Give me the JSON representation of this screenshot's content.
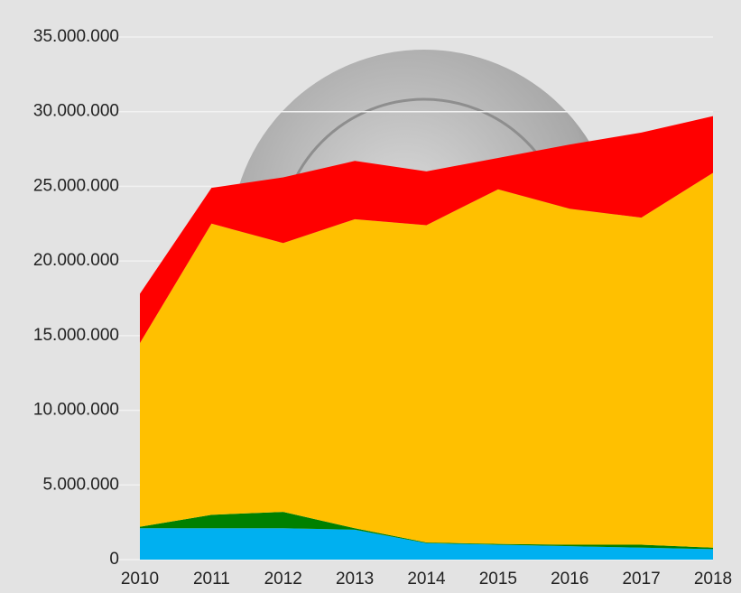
{
  "chart_data": {
    "type": "stacked-area",
    "categories": [
      "2010",
      "2011",
      "2012",
      "2013",
      "2014",
      "2015",
      "2016",
      "2017",
      "2018"
    ],
    "series": [
      {
        "color": "#00b0f0",
        "values": [
          2100000,
          2100000,
          2100000,
          2000000,
          1100000,
          1000000,
          900000,
          800000,
          700000
        ]
      },
      {
        "color": "#008000",
        "values": [
          100000,
          900000,
          1100000,
          100000,
          50000,
          50000,
          100000,
          200000,
          100000
        ]
      },
      {
        "color": "#ffc000",
        "values": [
          12300000,
          19500000,
          18000000,
          20700000,
          21250000,
          23750000,
          22500000,
          21900000,
          25100000
        ]
      },
      {
        "color": "#ff0000",
        "values": [
          3300000,
          2400000,
          4400000,
          3900000,
          3600000,
          2100000,
          4300000,
          5700000,
          3800000
        ]
      }
    ],
    "ylim": [
      0,
      35000000
    ],
    "yticks": [
      0,
      {
        "value": 5000000,
        "label": "5.000.000"
      },
      {
        "value": 10000000,
        "label": "10.000.000"
      },
      {
        "value": 15000000,
        "label": "15.000.000"
      },
      {
        "value": 20000000,
        "label": "20.000.000"
      },
      {
        "value": 25000000,
        "label": "25.000.000"
      },
      {
        "value": 30000000,
        "label": "30.000.000"
      },
      {
        "value": 35000000,
        "label": "35.000.000"
      }
    ],
    "grid": true
  }
}
